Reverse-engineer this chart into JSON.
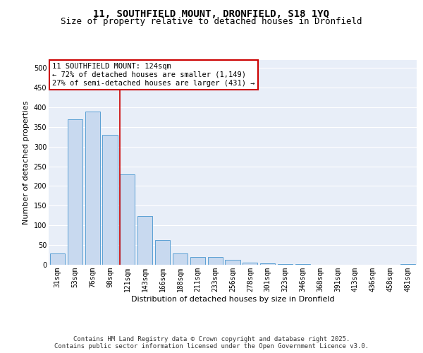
{
  "title": "11, SOUTHFIELD MOUNT, DRONFIELD, S18 1YQ",
  "subtitle": "Size of property relative to detached houses in Dronfield",
  "xlabel": "Distribution of detached houses by size in Dronfield",
  "ylabel": "Number of detached properties",
  "categories": [
    "31sqm",
    "53sqm",
    "76sqm",
    "98sqm",
    "121sqm",
    "143sqm",
    "166sqm",
    "188sqm",
    "211sqm",
    "233sqm",
    "256sqm",
    "278sqm",
    "301sqm",
    "323sqm",
    "346sqm",
    "368sqm",
    "391sqm",
    "413sqm",
    "436sqm",
    "458sqm",
    "481sqm"
  ],
  "values": [
    28,
    370,
    390,
    330,
    230,
    123,
    62,
    28,
    20,
    20,
    13,
    5,
    4,
    1,
    1,
    0,
    0,
    0,
    0,
    0,
    2
  ],
  "bar_color": "#c8d9ef",
  "bar_edge_color": "#5a9fd4",
  "property_line_index": 4,
  "property_line_color": "#cc0000",
  "annotation_text": "11 SOUTHFIELD MOUNT: 124sqm\n← 72% of detached houses are smaller (1,149)\n27% of semi-detached houses are larger (431) →",
  "annotation_box_color": "#ffffff",
  "annotation_box_edge": "#cc0000",
  "ylim": [
    0,
    520
  ],
  "yticks": [
    0,
    50,
    100,
    150,
    200,
    250,
    300,
    350,
    400,
    450,
    500
  ],
  "background_color": "#e8eef8",
  "footer_text": "Contains HM Land Registry data © Crown copyright and database right 2025.\nContains public sector information licensed under the Open Government Licence v3.0.",
  "title_fontsize": 10,
  "subtitle_fontsize": 9,
  "axis_label_fontsize": 8,
  "tick_fontsize": 7,
  "annotation_fontsize": 7.5,
  "footer_fontsize": 6.5
}
